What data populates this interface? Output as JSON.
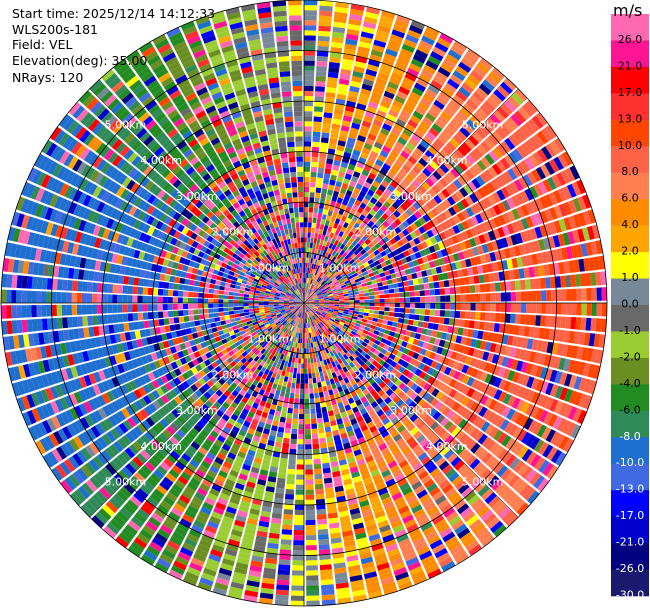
{
  "info": {
    "start_time": "Start time: 2025/12/14 14:12:33",
    "station": "WLS200s-181",
    "field": "Field: VEL",
    "elevation": "Elevation(deg): 35.00",
    "nrays": "NRays: 120"
  },
  "ppi": {
    "n_rays": 120,
    "max_range_km": 6.0,
    "range_rings_km": [
      1,
      2,
      3,
      4,
      5,
      6
    ],
    "ring_labels": [
      "1.00km",
      "2.00km",
      "3.00km",
      "4.00km",
      "5.00km"
    ],
    "velocity_pattern": {
      "description_free": true,
      "approaching_sector_deg": [
        200,
        340
      ],
      "receding_sector_deg": [
        20,
        160
      ],
      "peak_receding_ms": 8,
      "peak_approaching_ms": -12
    }
  },
  "colorbar": {
    "unit": "m/s",
    "labels": [
      "26.0",
      "21.0",
      "17.0",
      "13.0",
      "10.0",
      "8.0",
      "6.0",
      "4.0",
      "2.0",
      "1.0",
      "0.0",
      "-1.0",
      "-2.0",
      "-4.0",
      "-6.0",
      "-8.0",
      "-10.0",
      "-13.0",
      "-17.0",
      "-21.0",
      "-26.0",
      "-30.0"
    ],
    "colors": [
      "#ff69b4",
      "#ff1493",
      "#ff0000",
      "#ff3030",
      "#ff4500",
      "#ff6347",
      "#ff7f50",
      "#ff8c00",
      "#ffa500",
      "#ffff00",
      "#778899",
      "#696969",
      "#9acd32",
      "#6b8e23",
      "#228b22",
      "#2e8b57",
      "#1e6fcf",
      "#4169e1",
      "#0000ff",
      "#0000cd",
      "#000080",
      "#191970"
    ]
  }
}
